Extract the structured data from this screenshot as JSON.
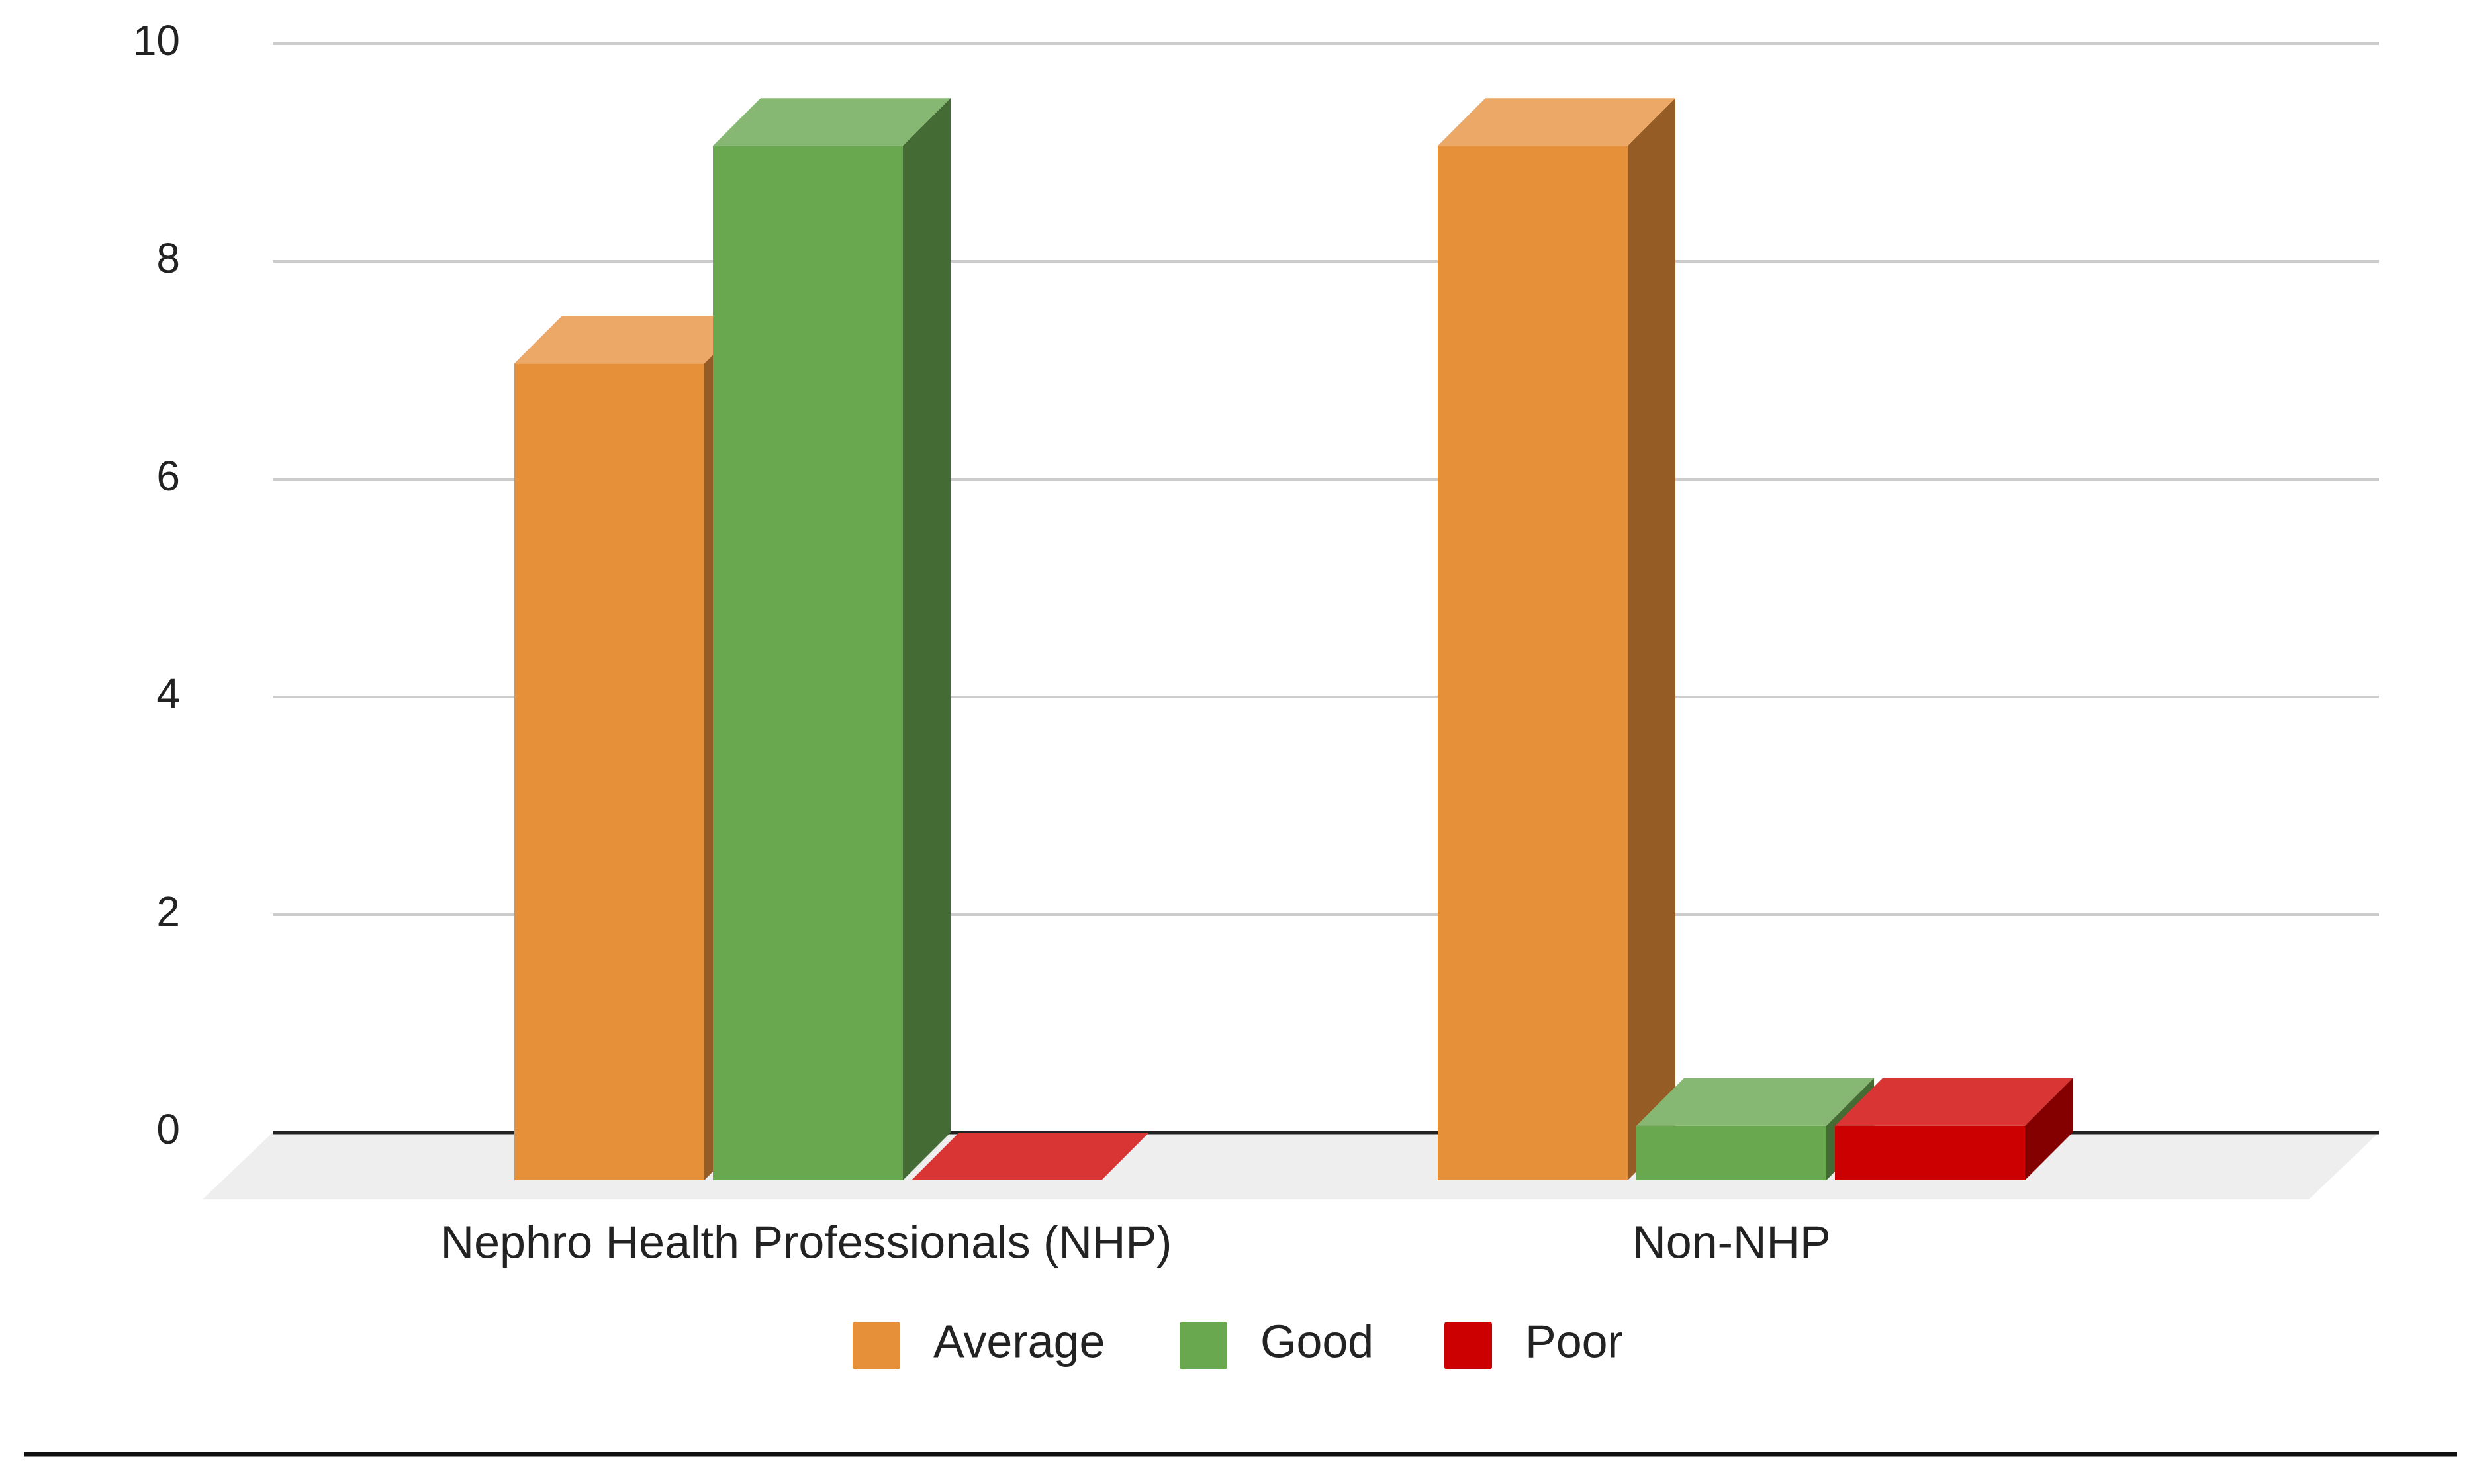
{
  "chart_data": {
    "type": "bar",
    "title": "",
    "xlabel": "",
    "ylabel": "",
    "categories": [
      "Nephro Health Professionals (NHP)",
      "Non-NHP"
    ],
    "series": [
      {
        "name": "Average",
        "values": [
          7.5,
          9.5
        ],
        "color": "#e6913a",
        "top_color": "#eca867",
        "side_color": "#965c25"
      },
      {
        "name": "Good",
        "values": [
          9.5,
          0.5
        ],
        "color": "#6aa84f",
        "top_color": "#86b874",
        "side_color": "#446b33"
      },
      {
        "name": "Poor",
        "values": [
          0,
          0.5
        ],
        "color": "#cc0000",
        "top_color": "#d93535",
        "side_color": "#840000"
      }
    ],
    "ylim": [
      0,
      10
    ],
    "yticks": [
      0,
      2,
      4,
      6,
      8,
      10
    ],
    "grid": true,
    "legend_position": "bottom",
    "style": "3d-column"
  }
}
